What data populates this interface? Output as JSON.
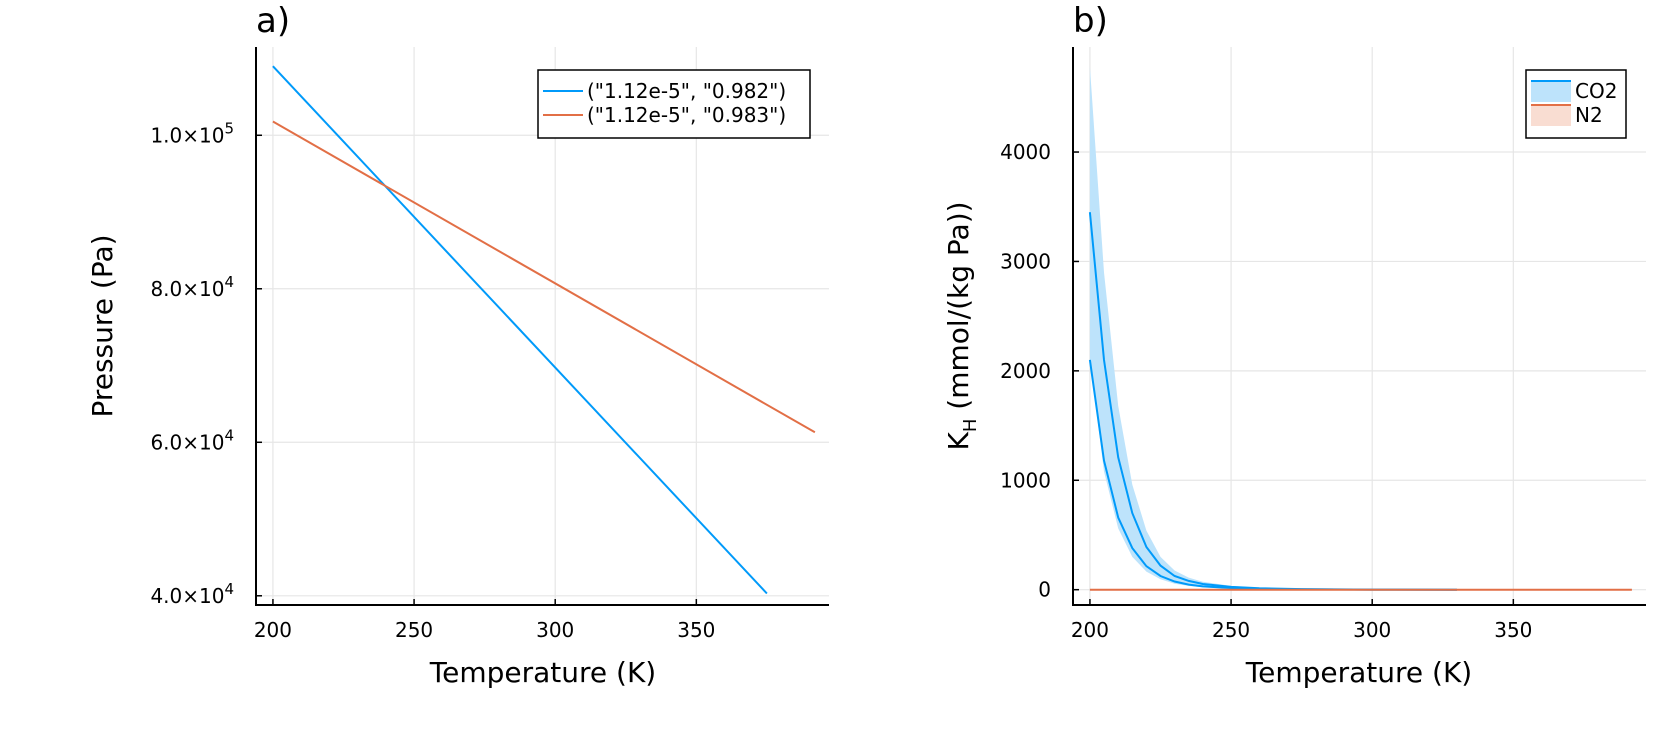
{
  "chart_data": [
    {
      "type": "line",
      "panel_label": "a)",
      "xlabel": "Temperature (K)",
      "ylabel": "Pressure (Pa)",
      "xlim": [
        194,
        397
      ],
      "ylim": [
        38800,
        111500
      ],
      "xticks": [
        200,
        250,
        300,
        350
      ],
      "xtick_labels": [
        "200",
        "250",
        "300",
        "350"
      ],
      "yticks": [
        40000,
        60000,
        80000,
        100000
      ],
      "ytick_mantissas": [
        "4.0",
        "6.0",
        "8.0",
        "1.0"
      ],
      "ytick_exponents": [
        "4",
        "4",
        "4",
        "5"
      ],
      "grid": true,
      "legend_position": "top-right",
      "series": [
        {
          "name": "(\"1.12e-5\", \"0.982\")",
          "color": "#009AFA",
          "x": [
            200,
            375
          ],
          "y": [
            109000,
            40300
          ]
        },
        {
          "name": "(\"1.12e-5\", \"0.983\")",
          "color": "#E26F46",
          "x": [
            200,
            392
          ],
          "y": [
            101800,
            61300
          ]
        }
      ]
    },
    {
      "type": "area",
      "panel_label": "b)",
      "xlabel": "Temperature (K)",
      "ylabel_main": "K",
      "ylabel_sub": "H",
      "ylabel_rest": " (mmol/(kg Pa))",
      "xlim": [
        194,
        397
      ],
      "ylim": [
        -140,
        4960
      ],
      "xticks": [
        200,
        250,
        300,
        350
      ],
      "xtick_labels": [
        "200",
        "250",
        "300",
        "350"
      ],
      "yticks": [
        0,
        1000,
        2000,
        3000,
        4000
      ],
      "ytick_labels": [
        "0",
        "1000",
        "2000",
        "3000",
        "4000"
      ],
      "grid": true,
      "legend_position": "top-right",
      "series": [
        {
          "name": "CO2",
          "color": "#009AFA",
          "band_color": "#BDE3FB",
          "x": [
            200,
            205,
            210,
            215,
            220,
            225,
            230,
            235,
            240,
            250,
            260,
            275,
            300,
            330
          ],
          "upper": [
            4780,
            2900,
            1680,
            960,
            540,
            300,
            175,
            110,
            72,
            35,
            18,
            7,
            2,
            0
          ],
          "line_a": [
            3450,
            2100,
            1210,
            700,
            390,
            220,
            125,
            80,
            52,
            25,
            13,
            5,
            1,
            0
          ],
          "line_b": [
            2100,
            1180,
            660,
            380,
            215,
            125,
            75,
            46,
            30,
            15,
            8,
            3,
            1,
            0
          ],
          "lower": [
            2100,
            1080,
            560,
            300,
            165,
            95,
            55,
            35,
            22,
            10,
            5,
            2,
            0,
            0
          ]
        },
        {
          "name": "N2",
          "color": "#E26F46",
          "band_color": "#F9DDD2",
          "x": [
            200,
            392
          ],
          "y": [
            0,
            0
          ]
        }
      ]
    }
  ]
}
